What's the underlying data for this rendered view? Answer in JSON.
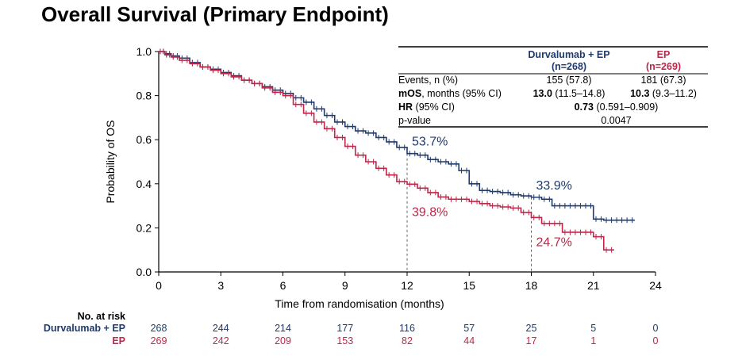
{
  "title": "Overall Survival (Primary Endpoint)",
  "colors": {
    "durva": "#1f3a6e",
    "ep": "#c0254a",
    "axis": "#000000",
    "ref": "#666666"
  },
  "chart_data": {
    "type": "line",
    "title": "Overall Survival (Primary Endpoint)",
    "xlabel": "Time from randomisation (months)",
    "ylabel": "Probability of OS",
    "xlim": [
      0,
      24
    ],
    "ylim": [
      0,
      1
    ],
    "xticks": [
      "0",
      "3",
      "6",
      "9",
      "12",
      "15",
      "18",
      "21",
      "24"
    ],
    "yticks": [
      "0.0",
      "0.2",
      "0.4",
      "0.6",
      "0.8",
      "1.0"
    ],
    "series": [
      {
        "name": "Durvalumab + EP",
        "color": "#1f3a6e",
        "x": [
          0,
          0.3,
          0.6,
          1,
          1.5,
          2,
          2.5,
          3,
          3.5,
          4,
          4.5,
          5,
          5.5,
          6,
          6.5,
          7,
          7.5,
          8,
          8.5,
          9,
          9.5,
          10,
          10.5,
          11,
          11.5,
          12,
          12.5,
          13,
          13.5,
          14,
          14.5,
          15,
          15.5,
          16,
          16.5,
          17,
          17.5,
          18,
          18.5,
          19,
          19.5,
          20,
          20.5,
          21,
          21.5,
          22,
          22.5,
          23
        ],
        "y": [
          1.0,
          0.99,
          0.98,
          0.97,
          0.95,
          0.93,
          0.92,
          0.905,
          0.89,
          0.87,
          0.855,
          0.84,
          0.825,
          0.81,
          0.79,
          0.77,
          0.74,
          0.71,
          0.68,
          0.66,
          0.64,
          0.63,
          0.61,
          0.59,
          0.565,
          0.537,
          0.53,
          0.51,
          0.5,
          0.49,
          0.46,
          0.4,
          0.37,
          0.365,
          0.36,
          0.35,
          0.345,
          0.339,
          0.33,
          0.3,
          0.3,
          0.3,
          0.3,
          0.24,
          0.235,
          0.235,
          0.235,
          0.235
        ],
        "annotations": [
          {
            "x": 12,
            "value": 0.537,
            "label": "53.7%"
          },
          {
            "x": 18,
            "value": 0.339,
            "label": "33.9%"
          }
        ]
      },
      {
        "name": "EP",
        "color": "#c0254a",
        "x": [
          0,
          0.3,
          0.6,
          1,
          1.5,
          2,
          2.5,
          3,
          3.5,
          4,
          4.5,
          5,
          5.5,
          6,
          6.5,
          7,
          7.5,
          8,
          8.5,
          9,
          9.5,
          10,
          10.5,
          11,
          11.5,
          12,
          12.5,
          13,
          13.5,
          14,
          14.5,
          15,
          15.5,
          16,
          16.5,
          17,
          17.5,
          18,
          18.5,
          19,
          19.5,
          20,
          20.5,
          21,
          21.5,
          22
        ],
        "y": [
          1.0,
          0.985,
          0.975,
          0.96,
          0.945,
          0.93,
          0.915,
          0.9,
          0.885,
          0.87,
          0.855,
          0.835,
          0.815,
          0.8,
          0.76,
          0.72,
          0.68,
          0.65,
          0.61,
          0.57,
          0.53,
          0.5,
          0.47,
          0.44,
          0.41,
          0.398,
          0.38,
          0.36,
          0.34,
          0.33,
          0.33,
          0.32,
          0.31,
          0.3,
          0.295,
          0.29,
          0.27,
          0.247,
          0.22,
          0.22,
          0.18,
          0.18,
          0.18,
          0.16,
          0.1,
          0.1
        ],
        "annotations": [
          {
            "x": 12,
            "value": 0.398,
            "label": "39.8%"
          },
          {
            "x": 18,
            "value": 0.247,
            "label": "24.7%"
          }
        ]
      }
    ],
    "reference_lines_x": [
      12,
      18
    ],
    "stats_table": {
      "headers": [
        "",
        "Durvalumab + EP\n(n=268)",
        "EP\n(n=269)"
      ],
      "rows": [
        {
          "label": "Events, n (%)",
          "durva": "155 (57.8)",
          "ep": "181 (67.3)"
        },
        {
          "label_bold": "mOS",
          "label_rest": ", months (95% CI)",
          "durva_bold": "13.0",
          "durva_rest": " (11.5–14.8)",
          "ep_bold": "10.3",
          "ep_rest": " (9.3–11.2)"
        },
        {
          "label_bold": "HR",
          "label_rest": " (95% CI)",
          "span_bold": "0.73",
          "span_rest": " (0.591–0.909)"
        },
        {
          "label": "p-value",
          "span": "0.0047"
        }
      ]
    },
    "risk_table": {
      "title": "No. at risk",
      "times": [
        0,
        3,
        6,
        9,
        12,
        15,
        18,
        21,
        24
      ],
      "rows": [
        {
          "name": "Durvalumab + EP",
          "counts": [
            "268",
            "244",
            "214",
            "177",
            "116",
            "57",
            "25",
            "5",
            "0"
          ]
        },
        {
          "name": "EP",
          "counts": [
            "269",
            "242",
            "209",
            "153",
            "82",
            "44",
            "17",
            "1",
            "0"
          ]
        }
      ]
    }
  }
}
